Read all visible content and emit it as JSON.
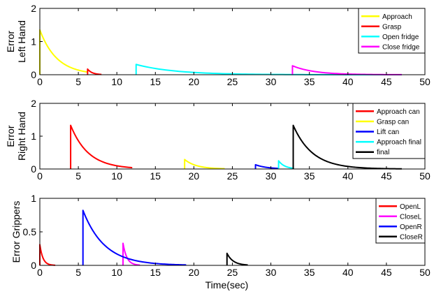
{
  "chart_data": [
    {
      "type": "line",
      "ylabel": [
        "Error",
        "Left Hand"
      ],
      "xlabel": "",
      "xlim": [
        0,
        50
      ],
      "ylim": [
        0,
        2
      ],
      "xticks": [
        0,
        5,
        10,
        15,
        20,
        25,
        30,
        35,
        40,
        45,
        50
      ],
      "yticks": [
        0,
        1,
        2
      ],
      "legend_position": "top-right",
      "series": [
        {
          "name": "Approach",
          "color": "#ffff00",
          "start": 0.0,
          "end": 6.2,
          "peak": 1.35,
          "tau": 2.2
        },
        {
          "name": "Grasp",
          "color": "#ff0000",
          "start": 6.2,
          "end": 8.0,
          "peak": 0.17,
          "tau": 0.6
        },
        {
          "name": "Open fridge",
          "color": "#00ffff",
          "start": 12.5,
          "end": 47.0,
          "peak": 0.31,
          "tau": 5.0
        },
        {
          "name": "Close fridge",
          "color": "#ff00ff",
          "start": 32.8,
          "end": 47.0,
          "peak": 0.27,
          "tau": 2.8
        }
      ]
    },
    {
      "type": "line",
      "ylabel": [
        "Error",
        "Right Hand"
      ],
      "xlabel": "",
      "xlim": [
        0,
        50
      ],
      "ylim": [
        0,
        2
      ],
      "xticks": [
        0,
        5,
        10,
        15,
        20,
        25,
        30,
        35,
        40,
        45,
        50
      ],
      "yticks": [
        0,
        1,
        2
      ],
      "legend_position": "top-right",
      "series": [
        {
          "name": "Approach can",
          "color": "#ff0000",
          "start": 4.0,
          "end": 12.0,
          "peak": 1.33,
          "tau": 2.3
        },
        {
          "name": "Grasp can",
          "color": "#ffff00",
          "start": 18.8,
          "end": 24.0,
          "peak": 0.29,
          "tau": 1.5
        },
        {
          "name": "Lift can",
          "color": "#0000ff",
          "start": 28.0,
          "end": 31.0,
          "peak": 0.13,
          "tau": 1.5
        },
        {
          "name": "Approach final",
          "color": "#00ffff",
          "start": 31.0,
          "end": 33.0,
          "peak": 0.25,
          "tau": 0.8
        },
        {
          "name": "final",
          "color": "#000000",
          "start": 32.9,
          "end": 47.0,
          "peak": 1.33,
          "tau": 2.5
        }
      ]
    },
    {
      "type": "line",
      "ylabel": [
        "Error Grippers"
      ],
      "xlabel": "Time(sec)",
      "xlim": [
        0,
        50
      ],
      "ylim": [
        0,
        1
      ],
      "xticks": [
        0,
        5,
        10,
        15,
        20,
        25,
        30,
        35,
        40,
        45,
        50
      ],
      "yticks": [
        0,
        0.5,
        1
      ],
      "legend_position": "top-right",
      "series": [
        {
          "name": "OpenL",
          "color": "#ff0000",
          "start": 0.0,
          "end": 2.0,
          "peak": 0.31,
          "tau": 0.4
        },
        {
          "name": "CloseL",
          "color": "#ff00ff",
          "start": 10.8,
          "end": 13.0,
          "peak": 0.33,
          "tau": 0.5
        },
        {
          "name": "OpenR",
          "color": "#0000ff",
          "start": 5.6,
          "end": 19.0,
          "peak": 0.82,
          "tau": 2.8
        },
        {
          "name": "CloseR",
          "color": "#000000",
          "start": 24.3,
          "end": 27.0,
          "peak": 0.18,
          "tau": 0.8
        }
      ]
    }
  ]
}
